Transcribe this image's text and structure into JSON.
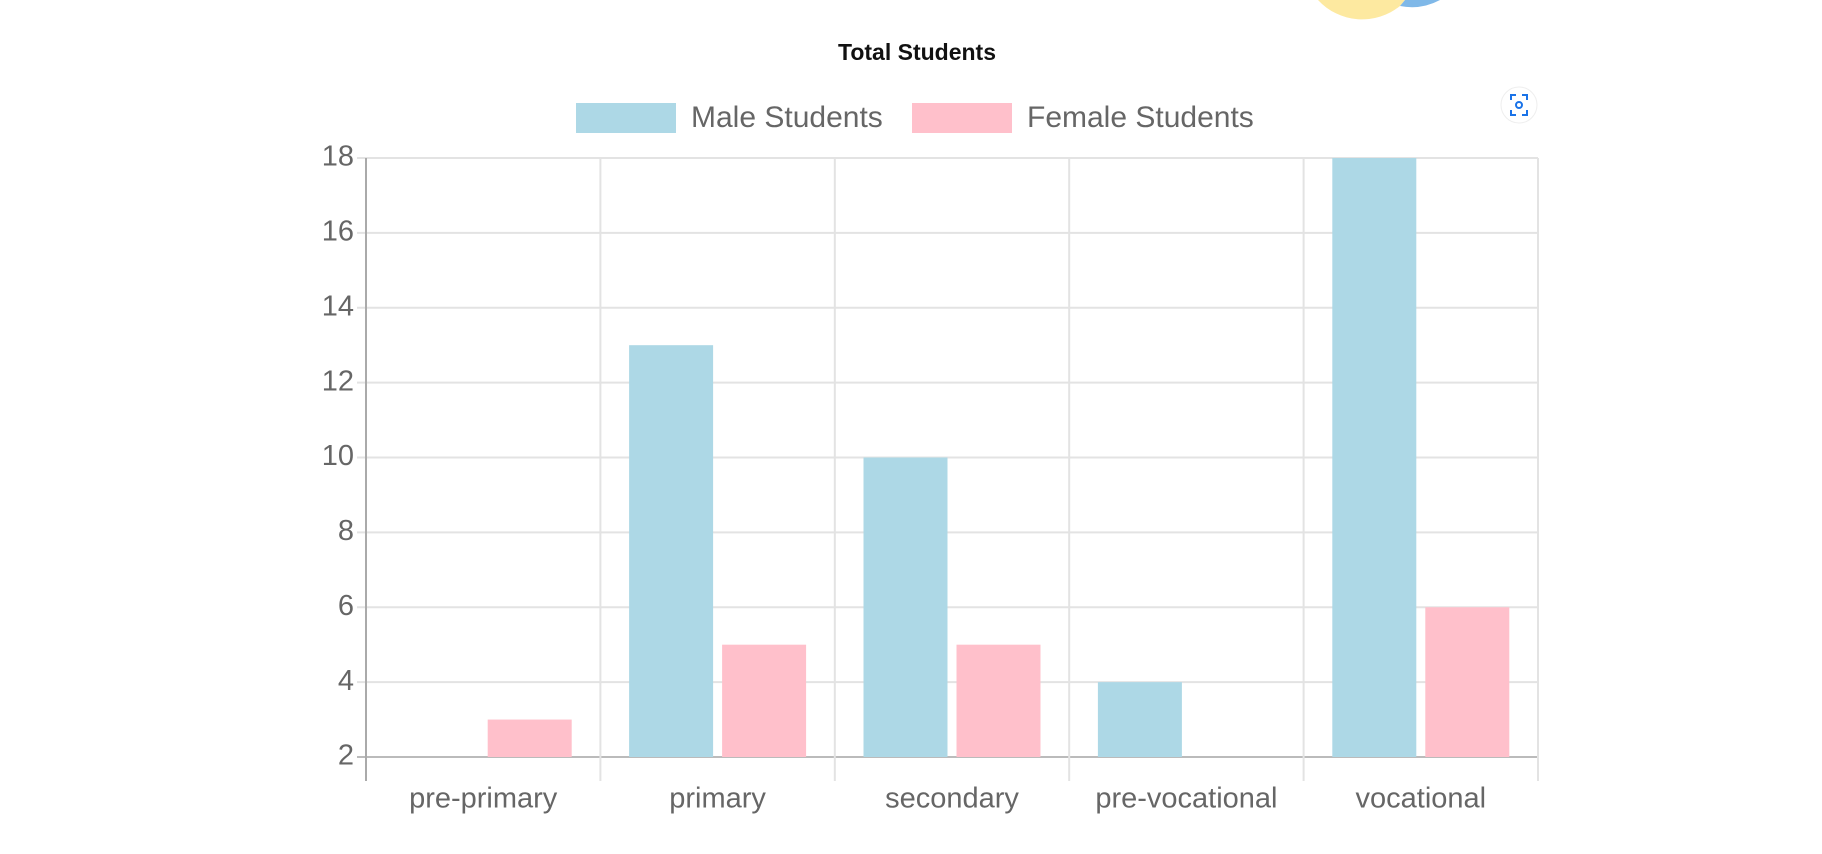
{
  "chart_data": {
    "type": "bar",
    "title": "Total Students",
    "categories": [
      "pre-primary",
      "primary",
      "secondary",
      "pre-vocational",
      "vocational"
    ],
    "series": [
      {
        "name": "Male Students",
        "color": "#add8e6",
        "values": [
          2,
          13,
          10,
          4,
          18
        ]
      },
      {
        "name": "Female Students",
        "color": "#ffc0cb",
        "values": [
          3,
          5,
          5,
          2,
          6
        ]
      }
    ],
    "ylim": [
      2,
      18
    ],
    "yticks": [
      2,
      4,
      6,
      8,
      10,
      12,
      14,
      16,
      18
    ],
    "grid": true,
    "legend": "top"
  }
}
